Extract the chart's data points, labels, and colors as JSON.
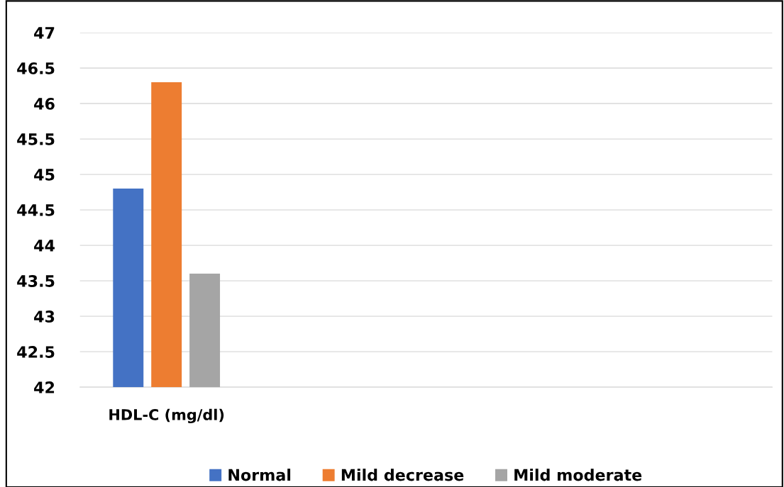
{
  "chart_data": {
    "type": "bar",
    "categories": [
      "HDL-C (mg/dl)",
      null,
      null,
      null
    ],
    "series": [
      {
        "name": "Normal",
        "color": "#4472c4",
        "values": [
          44.8,
          null,
          null,
          null
        ]
      },
      {
        "name": "Mild decrease",
        "color": "#ed7d31",
        "values": [
          46.3,
          null,
          null,
          null
        ]
      },
      {
        "name": "Mild moderate",
        "color": "#a5a5a5",
        "values": [
          43.6,
          null,
          null,
          null
        ]
      }
    ],
    "ylim": [
      42,
      47
    ],
    "yticks": [
      42,
      42.5,
      43,
      43.5,
      44,
      44.5,
      45,
      45.5,
      46,
      46.5,
      47
    ],
    "grid": "y",
    "legend": "bottom"
  }
}
